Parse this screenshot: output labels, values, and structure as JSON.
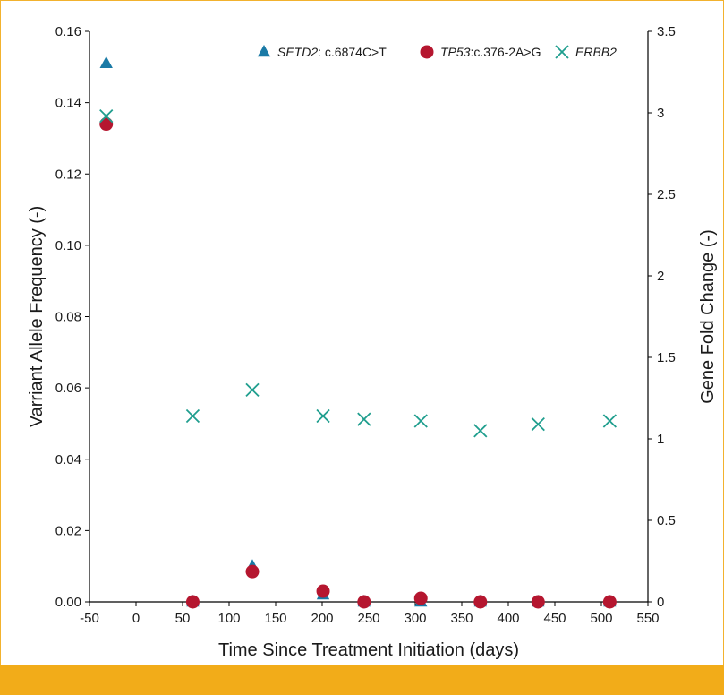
{
  "chart_data": {
    "type": "scatter",
    "xlabel": "Time Since Treatment Initiation (days)",
    "ylabel": "Varriant Allele Frequency (-)",
    "y2label": "Gene Fold Change (-)",
    "xlim": [
      -50,
      550
    ],
    "ylim": [
      0,
      0.16
    ],
    "y2lim": [
      0,
      3.5
    ],
    "xticks": [
      "-50",
      "0",
      "50",
      "100",
      "150",
      "200",
      "250",
      "300",
      "350",
      "400",
      "450",
      "500",
      "550"
    ],
    "yticks": [
      "0.00",
      "0.02",
      "0.04",
      "0.06",
      "0.08",
      "0.10",
      "0.12",
      "0.14",
      "0.16"
    ],
    "y2ticks": [
      "0",
      "0.5",
      "1",
      "1.5",
      "2",
      "2.5",
      "3",
      "3.5"
    ],
    "grid": false,
    "legend_position": "top-right",
    "series": [
      {
        "name": "SETD2",
        "name_suffix": ": c.6874C>T",
        "marker": "triangle",
        "color": "#1a7aa6",
        "axis": "left",
        "x": [
          -32,
          61,
          125,
          201,
          245,
          306,
          370,
          432,
          509
        ],
        "y": [
          0.151,
          0.0,
          0.01,
          0.002,
          0.0,
          0.0,
          0.0,
          0.0,
          0.0
        ]
      },
      {
        "name": "TP53",
        "name_suffix": ":c.376-2A>G",
        "marker": "circle",
        "color": "#b5162f",
        "axis": "left",
        "x": [
          -32,
          61,
          125,
          201,
          245,
          306,
          370,
          432,
          509
        ],
        "y": [
          0.134,
          0.0,
          0.0085,
          0.003,
          0.0,
          0.001,
          0.0,
          0.0,
          0.0
        ]
      },
      {
        "name": "ERBB2",
        "name_suffix": "",
        "marker": "x",
        "color": "#1f9e8e",
        "axis": "right",
        "x": [
          -32,
          61,
          125,
          201,
          245,
          306,
          370,
          432,
          509
        ],
        "y": [
          2.98,
          1.14,
          1.3,
          1.14,
          1.12,
          1.11,
          1.05,
          1.09,
          1.11
        ]
      }
    ]
  }
}
